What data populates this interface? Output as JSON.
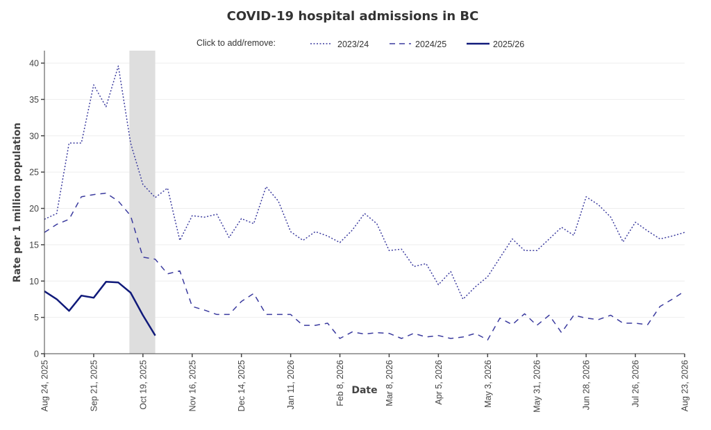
{
  "chart_data": {
    "type": "line",
    "title": "COVID-19 hospital admissions in BC",
    "xlabel": "Date",
    "ylabel": "Rate per 1 million population",
    "ylim": [
      0,
      41
    ],
    "yticks": [
      0,
      5,
      10,
      15,
      20,
      25,
      30,
      35,
      40
    ],
    "grid": true,
    "legend": {
      "prompt": "Click to add/remove:",
      "placement": "top-center",
      "entries": [
        "2023/24",
        "2024/25",
        "2025/26"
      ]
    },
    "x_start": "Aug 24, 2025",
    "x_end": "Aug 23, 2026",
    "x_interval": "weekly",
    "xtick_labels": [
      "Aug 24, 2025",
      "Sep 21, 2025",
      "Oct 19, 2025",
      "Nov 16, 2025",
      "Dec 14, 2025",
      "Jan 11, 2026",
      "Feb 8, 2026",
      "Mar 8, 2026",
      "Apr 5, 2026",
      "May 3, 2026",
      "May 31, 2026",
      "Jun 28, 2026",
      "Jul 26, 2026",
      "Aug 23, 2026"
    ],
    "xtick_week_index": [
      0,
      4,
      8,
      12,
      16,
      20,
      24,
      28,
      32,
      36,
      40,
      44,
      48,
      52
    ],
    "shaded_range_week_index": [
      6.9,
      9.0
    ],
    "series": [
      {
        "name": "2023/24",
        "style": "dotted",
        "color": "#3a3a9e",
        "values": [
          18.5,
          19.3,
          29.0,
          29.0,
          37.0,
          34.0,
          39.6,
          29.0,
          23.3,
          21.5,
          22.8,
          15.6,
          19.0,
          18.8,
          19.2,
          16.0,
          18.6,
          17.9,
          23.0,
          21.0,
          16.8,
          15.6,
          16.8,
          16.2,
          15.3,
          17.0,
          19.3,
          17.9,
          14.2,
          14.4,
          12.0,
          12.4,
          9.5,
          11.3,
          7.5,
          9.2,
          10.6,
          13.2,
          15.8,
          14.2,
          14.2,
          15.8,
          17.4,
          16.3,
          21.6,
          20.5,
          18.8,
          15.4,
          18.1,
          16.9,
          15.8,
          16.2,
          16.7
        ]
      },
      {
        "name": "2024/25",
        "style": "dashed",
        "color": "#3a3a9e",
        "values": [
          16.7,
          17.8,
          18.5,
          21.6,
          21.9,
          22.1,
          21.0,
          19.0,
          13.3,
          13.0,
          11.0,
          11.4,
          6.5,
          6.0,
          5.4,
          5.4,
          7.2,
          8.3,
          5.4,
          5.4,
          5.4,
          3.9,
          3.9,
          4.2,
          2.1,
          3.0,
          2.7,
          2.9,
          2.8,
          2.1,
          2.8,
          2.3,
          2.5,
          2.1,
          2.3,
          2.8,
          1.9,
          4.9,
          4.0,
          5.5,
          3.9,
          5.3,
          2.9,
          5.3,
          4.9,
          4.7,
          5.3,
          4.2,
          4.2,
          4.0,
          6.5,
          7.5,
          8.6
        ]
      },
      {
        "name": "2025/26",
        "style": "solid",
        "color": "#101a7a",
        "values": [
          8.6,
          7.5,
          5.9,
          8.0,
          7.7,
          9.9,
          9.8,
          8.4,
          5.3,
          2.5
        ]
      }
    ]
  }
}
